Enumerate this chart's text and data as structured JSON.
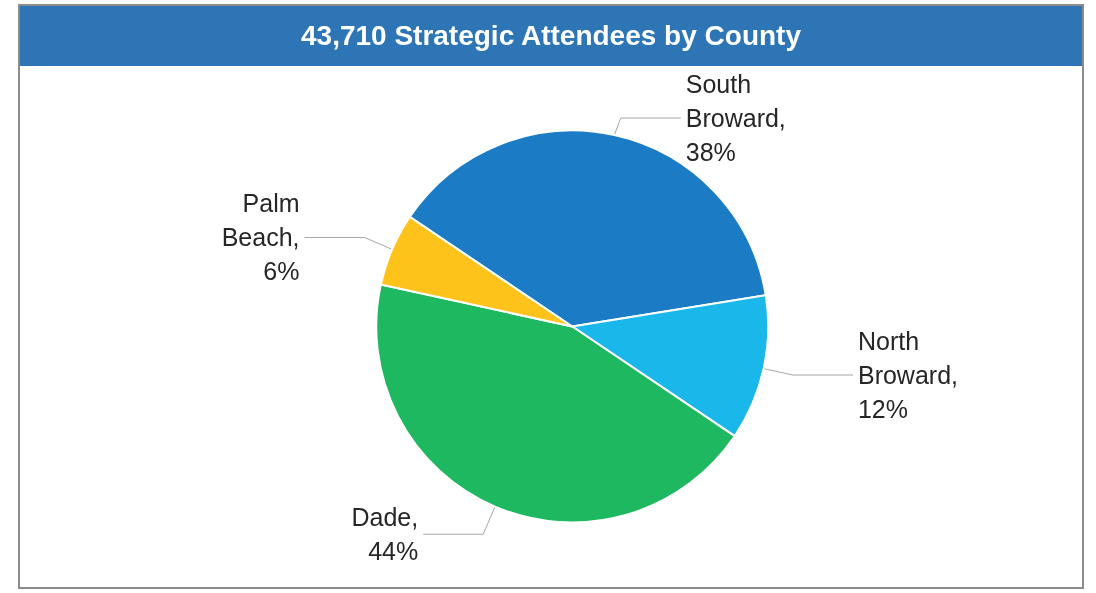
{
  "chart_data": {
    "type": "pie",
    "title": "43,710 Strategic Attendees by County",
    "categories": [
      "South Broward",
      "North Broward",
      "Dade",
      "Palm Beach"
    ],
    "values": [
      38,
      12,
      44,
      6
    ],
    "value_labels": [
      ", 38%",
      ", 12%",
      ", 44%",
      ", 6%"
    ],
    "colors": [
      "#1b7bc4",
      "#1ab7ea",
      "#1db860",
      "#fdc31a"
    ],
    "legend": false
  }
}
